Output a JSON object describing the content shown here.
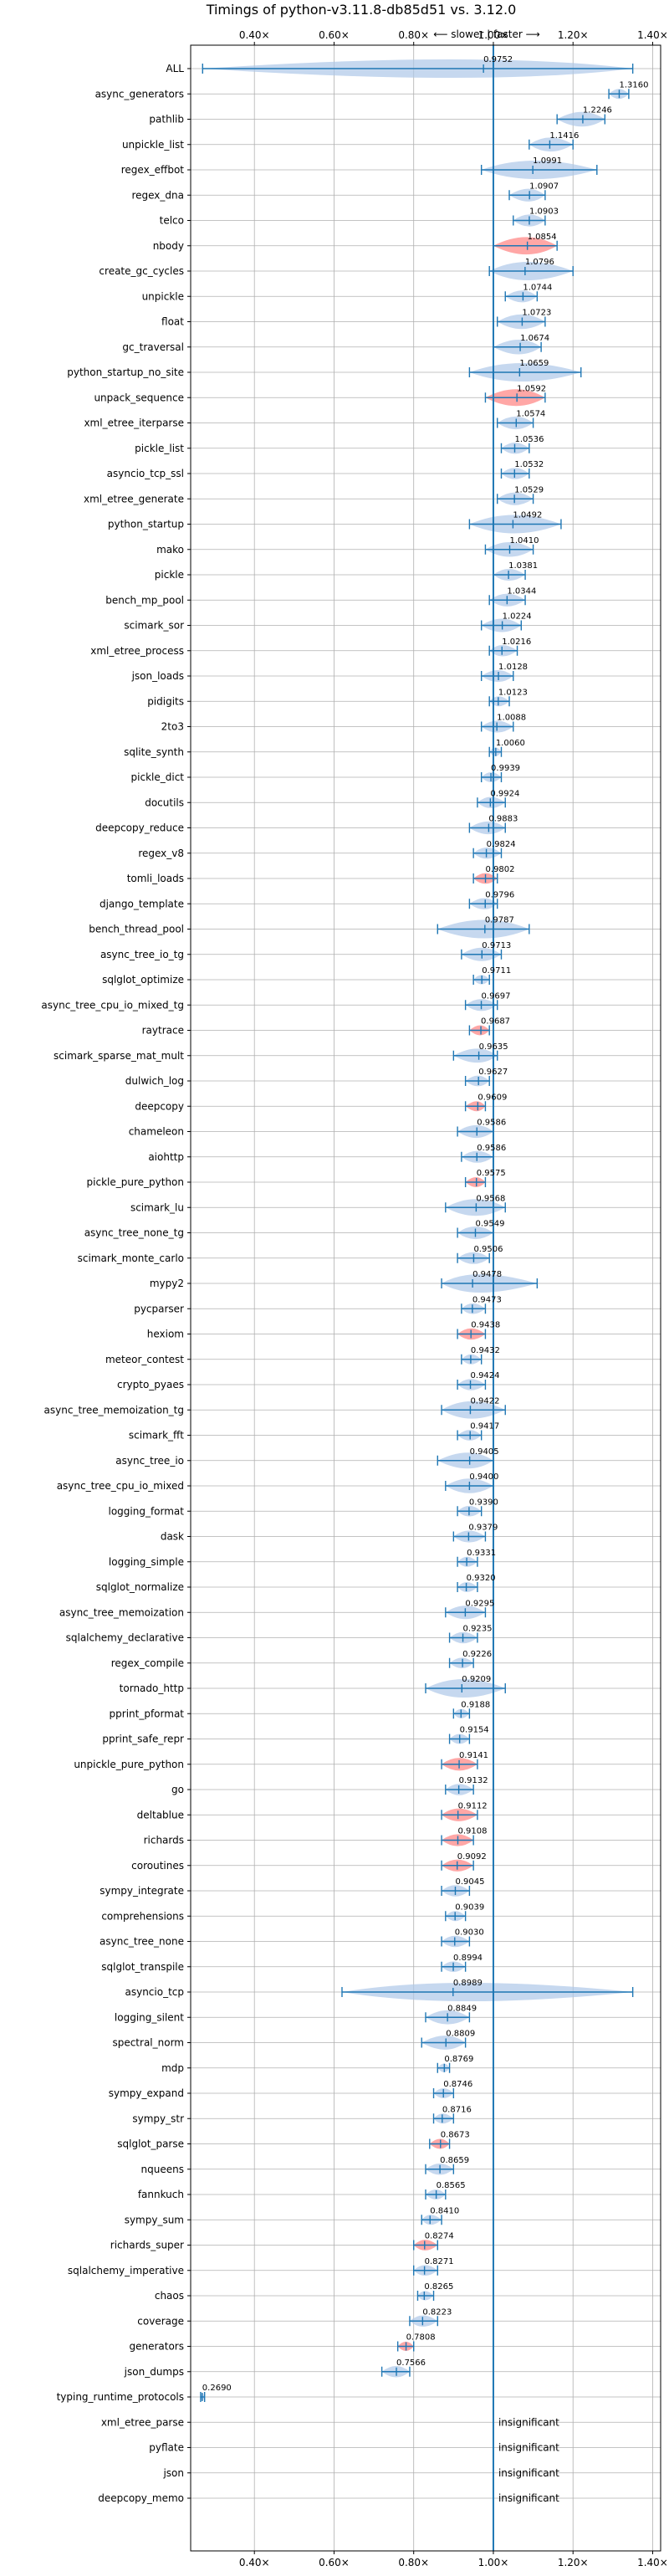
{
  "chart_data": {
    "type": "violin",
    "title": "Timings of python-v3.11.8-db85d51 vs. 3.12.0",
    "direction_label": "⟵ slower | faster ⟶",
    "xlim": [
      0.24,
      1.42
    ],
    "x_ticks": [
      0.4,
      0.6,
      0.8,
      1.0,
      1.2,
      1.4
    ],
    "x_tick_labels": [
      "0.40×",
      "0.60×",
      "0.80×",
      "1.00×",
      "1.20×",
      "1.40×"
    ],
    "reference_line": 1.0,
    "grid": true,
    "colors": {
      "faster": "#1f77b4",
      "slower_highlight": "#ff9896",
      "violin": "#aec7e8",
      "grid": "#b0b0b0"
    },
    "insignificant_label": "insignificant",
    "benchmarks": [
      {
        "name": "ALL",
        "value": 0.9752,
        "label": "0.9752",
        "lo": 0.27,
        "hi": 1.35
      },
      {
        "name": "async_generators",
        "value": 1.316,
        "label": "1.3160",
        "lo": 1.29,
        "hi": 1.34
      },
      {
        "name": "pathlib",
        "value": 1.2246,
        "label": "1.2246",
        "lo": 1.16,
        "hi": 1.28
      },
      {
        "name": "unpickle_list",
        "value": 1.1416,
        "label": "1.1416",
        "lo": 1.09,
        "hi": 1.2
      },
      {
        "name": "regex_effbot",
        "value": 1.0991,
        "label": "1.0991",
        "lo": 0.97,
        "hi": 1.26
      },
      {
        "name": "regex_dna",
        "value": 1.0907,
        "label": "1.0907",
        "lo": 1.04,
        "hi": 1.13
      },
      {
        "name": "telco",
        "value": 1.0903,
        "label": "1.0903",
        "lo": 1.05,
        "hi": 1.13
      },
      {
        "name": "nbody",
        "value": 1.0854,
        "label": "1.0854",
        "lo": 1.0,
        "hi": 1.16,
        "highlight": true
      },
      {
        "name": "create_gc_cycles",
        "value": 1.0796,
        "label": "1.0796",
        "lo": 0.99,
        "hi": 1.2
      },
      {
        "name": "unpickle",
        "value": 1.0744,
        "label": "1.0744",
        "lo": 1.03,
        "hi": 1.11
      },
      {
        "name": "float",
        "value": 1.0723,
        "label": "1.0723",
        "lo": 1.01,
        "hi": 1.13
      },
      {
        "name": "gc_traversal",
        "value": 1.0674,
        "label": "1.0674",
        "lo": 1.0,
        "hi": 1.12
      },
      {
        "name": "python_startup_no_site",
        "value": 1.0659,
        "label": "1.0659",
        "lo": 0.94,
        "hi": 1.22
      },
      {
        "name": "unpack_sequence",
        "value": 1.0592,
        "label": "1.0592",
        "lo": 0.98,
        "hi": 1.13,
        "highlight": true
      },
      {
        "name": "xml_etree_iterparse",
        "value": 1.0574,
        "label": "1.0574",
        "lo": 1.01,
        "hi": 1.1
      },
      {
        "name": "pickle_list",
        "value": 1.0536,
        "label": "1.0536",
        "lo": 1.02,
        "hi": 1.09
      },
      {
        "name": "asyncio_tcp_ssl",
        "value": 1.0532,
        "label": "1.0532",
        "lo": 1.02,
        "hi": 1.09
      },
      {
        "name": "xml_etree_generate",
        "value": 1.0529,
        "label": "1.0529",
        "lo": 1.01,
        "hi": 1.1
      },
      {
        "name": "python_startup",
        "value": 1.0492,
        "label": "1.0492",
        "lo": 0.94,
        "hi": 1.17
      },
      {
        "name": "mako",
        "value": 1.041,
        "label": "1.0410",
        "lo": 0.98,
        "hi": 1.1
      },
      {
        "name": "pickle",
        "value": 1.0381,
        "label": "1.0381",
        "lo": 1.0,
        "hi": 1.08
      },
      {
        "name": "bench_mp_pool",
        "value": 1.0344,
        "label": "1.0344",
        "lo": 0.99,
        "hi": 1.08
      },
      {
        "name": "scimark_sor",
        "value": 1.0224,
        "label": "1.0224",
        "lo": 0.97,
        "hi": 1.07
      },
      {
        "name": "xml_etree_process",
        "value": 1.0216,
        "label": "1.0216",
        "lo": 0.99,
        "hi": 1.06
      },
      {
        "name": "json_loads",
        "value": 1.0128,
        "label": "1.0128",
        "lo": 0.97,
        "hi": 1.05
      },
      {
        "name": "pidigits",
        "value": 1.0123,
        "label": "1.0123",
        "lo": 0.99,
        "hi": 1.04
      },
      {
        "name": "2to3",
        "value": 1.0088,
        "label": "1.0088",
        "lo": 0.97,
        "hi": 1.05
      },
      {
        "name": "sqlite_synth",
        "value": 1.006,
        "label": "1.0060",
        "lo": 0.99,
        "hi": 1.02
      },
      {
        "name": "pickle_dict",
        "value": 0.9939,
        "label": "0.9939",
        "lo": 0.97,
        "hi": 1.02
      },
      {
        "name": "docutils",
        "value": 0.9924,
        "label": "0.9924",
        "lo": 0.96,
        "hi": 1.03
      },
      {
        "name": "deepcopy_reduce",
        "value": 0.9883,
        "label": "0.9883",
        "lo": 0.94,
        "hi": 1.03
      },
      {
        "name": "regex_v8",
        "value": 0.9824,
        "label": "0.9824",
        "lo": 0.95,
        "hi": 1.02
      },
      {
        "name": "tomli_loads",
        "value": 0.9802,
        "label": "0.9802",
        "lo": 0.95,
        "hi": 1.01,
        "highlight": true
      },
      {
        "name": "django_template",
        "value": 0.9796,
        "label": "0.9796",
        "lo": 0.94,
        "hi": 1.01
      },
      {
        "name": "bench_thread_pool",
        "value": 0.9787,
        "label": "0.9787",
        "lo": 0.86,
        "hi": 1.09
      },
      {
        "name": "async_tree_io_tg",
        "value": 0.9713,
        "label": "0.9713",
        "lo": 0.92,
        "hi": 1.02
      },
      {
        "name": "sqlglot_optimize",
        "value": 0.9711,
        "label": "0.9711",
        "lo": 0.95,
        "hi": 0.99
      },
      {
        "name": "async_tree_cpu_io_mixed_tg",
        "value": 0.9697,
        "label": "0.9697",
        "lo": 0.93,
        "hi": 1.01
      },
      {
        "name": "raytrace",
        "value": 0.9687,
        "label": "0.9687",
        "lo": 0.94,
        "hi": 0.99,
        "highlight": true
      },
      {
        "name": "scimark_sparse_mat_mult",
        "value": 0.9635,
        "label": "0.9635",
        "lo": 0.9,
        "hi": 1.01
      },
      {
        "name": "dulwich_log",
        "value": 0.9627,
        "label": "0.9627",
        "lo": 0.93,
        "hi": 0.99
      },
      {
        "name": "deepcopy",
        "value": 0.9609,
        "label": "0.9609",
        "lo": 0.93,
        "hi": 0.98,
        "highlight": true
      },
      {
        "name": "chameleon",
        "value": 0.9586,
        "label": "0.9586",
        "lo": 0.91,
        "hi": 1.0
      },
      {
        "name": "aiohttp",
        "value": 0.9586,
        "label": "0.9586",
        "lo": 0.92,
        "hi": 1.0
      },
      {
        "name": "pickle_pure_python",
        "value": 0.9575,
        "label": "0.9575",
        "lo": 0.93,
        "hi": 0.98,
        "highlight": true
      },
      {
        "name": "scimark_lu",
        "value": 0.9568,
        "label": "0.9568",
        "lo": 0.88,
        "hi": 1.03
      },
      {
        "name": "async_tree_none_tg",
        "value": 0.9549,
        "label": "0.9549",
        "lo": 0.91,
        "hi": 1.0
      },
      {
        "name": "scimark_monte_carlo",
        "value": 0.9506,
        "label": "0.9506",
        "lo": 0.91,
        "hi": 0.99
      },
      {
        "name": "mypy2",
        "value": 0.9478,
        "label": "0.9478",
        "lo": 0.87,
        "hi": 1.11
      },
      {
        "name": "pycparser",
        "value": 0.9473,
        "label": "0.9473",
        "lo": 0.92,
        "hi": 0.98
      },
      {
        "name": "hexiom",
        "value": 0.9438,
        "label": "0.9438",
        "lo": 0.91,
        "hi": 0.98,
        "highlight": true
      },
      {
        "name": "meteor_contest",
        "value": 0.9432,
        "label": "0.9432",
        "lo": 0.92,
        "hi": 0.97
      },
      {
        "name": "crypto_pyaes",
        "value": 0.9424,
        "label": "0.9424",
        "lo": 0.91,
        "hi": 0.98
      },
      {
        "name": "async_tree_memoization_tg",
        "value": 0.9422,
        "label": "0.9422",
        "lo": 0.87,
        "hi": 1.03
      },
      {
        "name": "scimark_fft",
        "value": 0.9417,
        "label": "0.9417",
        "lo": 0.91,
        "hi": 0.97
      },
      {
        "name": "async_tree_io",
        "value": 0.9405,
        "label": "0.9405",
        "lo": 0.86,
        "hi": 1.0
      },
      {
        "name": "async_tree_cpu_io_mixed",
        "value": 0.94,
        "label": "0.9400",
        "lo": 0.88,
        "hi": 1.0
      },
      {
        "name": "logging_format",
        "value": 0.939,
        "label": "0.9390",
        "lo": 0.91,
        "hi": 0.97
      },
      {
        "name": "dask",
        "value": 0.9379,
        "label": "0.9379",
        "lo": 0.9,
        "hi": 0.98
      },
      {
        "name": "logging_simple",
        "value": 0.9331,
        "label": "0.9331",
        "lo": 0.91,
        "hi": 0.96
      },
      {
        "name": "sqlglot_normalize",
        "value": 0.932,
        "label": "0.9320",
        "lo": 0.91,
        "hi": 0.96
      },
      {
        "name": "async_tree_memoization",
        "value": 0.9295,
        "label": "0.9295",
        "lo": 0.88,
        "hi": 0.98
      },
      {
        "name": "sqlalchemy_declarative",
        "value": 0.9235,
        "label": "0.9235",
        "lo": 0.89,
        "hi": 0.96
      },
      {
        "name": "regex_compile",
        "value": 0.9226,
        "label": "0.9226",
        "lo": 0.89,
        "hi": 0.95
      },
      {
        "name": "tornado_http",
        "value": 0.9209,
        "label": "0.9209",
        "lo": 0.83,
        "hi": 1.03
      },
      {
        "name": "pprint_pformat",
        "value": 0.9188,
        "label": "0.9188",
        "lo": 0.9,
        "hi": 0.94
      },
      {
        "name": "pprint_safe_repr",
        "value": 0.9154,
        "label": "0.9154",
        "lo": 0.89,
        "hi": 0.94
      },
      {
        "name": "unpickle_pure_python",
        "value": 0.9141,
        "label": "0.9141",
        "lo": 0.87,
        "hi": 0.96,
        "highlight": true
      },
      {
        "name": "go",
        "value": 0.9132,
        "label": "0.9132",
        "lo": 0.88,
        "hi": 0.95
      },
      {
        "name": "deltablue",
        "value": 0.9112,
        "label": "0.9112",
        "lo": 0.87,
        "hi": 0.96,
        "highlight": true
      },
      {
        "name": "richards",
        "value": 0.9108,
        "label": "0.9108",
        "lo": 0.87,
        "hi": 0.95,
        "highlight": true
      },
      {
        "name": "coroutines",
        "value": 0.9092,
        "label": "0.9092",
        "lo": 0.87,
        "hi": 0.95,
        "highlight": true
      },
      {
        "name": "sympy_integrate",
        "value": 0.9045,
        "label": "0.9045",
        "lo": 0.87,
        "hi": 0.94
      },
      {
        "name": "comprehensions",
        "value": 0.9039,
        "label": "0.9039",
        "lo": 0.88,
        "hi": 0.93
      },
      {
        "name": "async_tree_none",
        "value": 0.903,
        "label": "0.9030",
        "lo": 0.87,
        "hi": 0.94
      },
      {
        "name": "sqlglot_transpile",
        "value": 0.8994,
        "label": "0.8994",
        "lo": 0.87,
        "hi": 0.93
      },
      {
        "name": "asyncio_tcp",
        "value": 0.8989,
        "label": "0.8989",
        "lo": 0.62,
        "hi": 1.35
      },
      {
        "name": "logging_silent",
        "value": 0.8849,
        "label": "0.8849",
        "lo": 0.83,
        "hi": 0.94
      },
      {
        "name": "spectral_norm",
        "value": 0.8809,
        "label": "0.8809",
        "lo": 0.82,
        "hi": 0.93
      },
      {
        "name": "mdp",
        "value": 0.8769,
        "label": "0.8769",
        "lo": 0.86,
        "hi": 0.89
      },
      {
        "name": "sympy_expand",
        "value": 0.8746,
        "label": "0.8746",
        "lo": 0.85,
        "hi": 0.9
      },
      {
        "name": "sympy_str",
        "value": 0.8716,
        "label": "0.8716",
        "lo": 0.85,
        "hi": 0.9
      },
      {
        "name": "sqlglot_parse",
        "value": 0.8673,
        "label": "0.8673",
        "lo": 0.84,
        "hi": 0.89,
        "highlight": true
      },
      {
        "name": "nqueens",
        "value": 0.8659,
        "label": "0.8659",
        "lo": 0.83,
        "hi": 0.9
      },
      {
        "name": "fannkuch",
        "value": 0.8565,
        "label": "0.8565",
        "lo": 0.83,
        "hi": 0.88
      },
      {
        "name": "sympy_sum",
        "value": 0.841,
        "label": "0.8410",
        "lo": 0.82,
        "hi": 0.87
      },
      {
        "name": "richards_super",
        "value": 0.8274,
        "label": "0.8274",
        "lo": 0.8,
        "hi": 0.86,
        "highlight": true
      },
      {
        "name": "sqlalchemy_imperative",
        "value": 0.8271,
        "label": "0.8271",
        "lo": 0.8,
        "hi": 0.86
      },
      {
        "name": "chaos",
        "value": 0.8265,
        "label": "0.8265",
        "lo": 0.81,
        "hi": 0.85
      },
      {
        "name": "coverage",
        "value": 0.8223,
        "label": "0.8223",
        "lo": 0.79,
        "hi": 0.86
      },
      {
        "name": "generators",
        "value": 0.7808,
        "label": "0.7808",
        "lo": 0.76,
        "hi": 0.8,
        "highlight": true
      },
      {
        "name": "json_dumps",
        "value": 0.7566,
        "label": "0.7566",
        "lo": 0.72,
        "hi": 0.79
      },
      {
        "name": "typing_runtime_protocols",
        "value": 0.269,
        "label": "0.2690",
        "lo": 0.265,
        "hi": 0.275
      },
      {
        "name": "xml_etree_parse",
        "insignificant": true
      },
      {
        "name": "pyflate",
        "insignificant": true
      },
      {
        "name": "json",
        "insignificant": true
      },
      {
        "name": "deepcopy_memo",
        "insignificant": true
      }
    ]
  }
}
